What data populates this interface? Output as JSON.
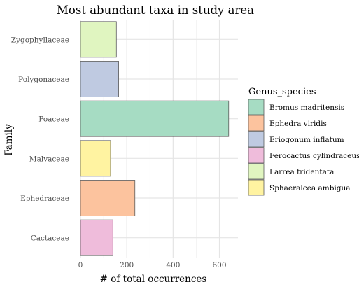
{
  "chart_data": {
    "type": "bar",
    "orientation": "horizontal",
    "title": "Most abundant taxa in study area",
    "xlabel": "# of total occurrences",
    "ylabel": "Family",
    "categories": [
      "Zygophyllaceae",
      "Polygonaceae",
      "Poaceae",
      "Malvaceae",
      "Ephedraceae",
      "Cactaceae"
    ],
    "values": [
      155,
      165,
      640,
      130,
      235,
      140
    ],
    "bar_species": [
      "Larrea tridentata",
      "Eriogonum inflatum",
      "Bromus madritensis",
      "Sphaeralcea ambigua",
      "Ephedra viridis",
      "Ferocactus cylindraceus"
    ],
    "xlim": [
      0,
      680
    ],
    "xticks": [
      0,
      200,
      400,
      600
    ],
    "grid": true,
    "legend": {
      "title": "Genus_species",
      "position": "right",
      "items": [
        {
          "label": "Bromus madritensis",
          "color": "#a6dcc3"
        },
        {
          "label": "Ephedra viridis",
          "color": "#fcc39e"
        },
        {
          "label": "Eriogonum inflatum",
          "color": "#bfcae1"
        },
        {
          "label": "Ferocactus cylindraceus",
          "color": "#efbcdb"
        },
        {
          "label": "Larrea tridentata",
          "color": "#e0f5c0"
        },
        {
          "label": "Sphaeralcea ambigua",
          "color": "#fff3a1"
        }
      ]
    }
  }
}
